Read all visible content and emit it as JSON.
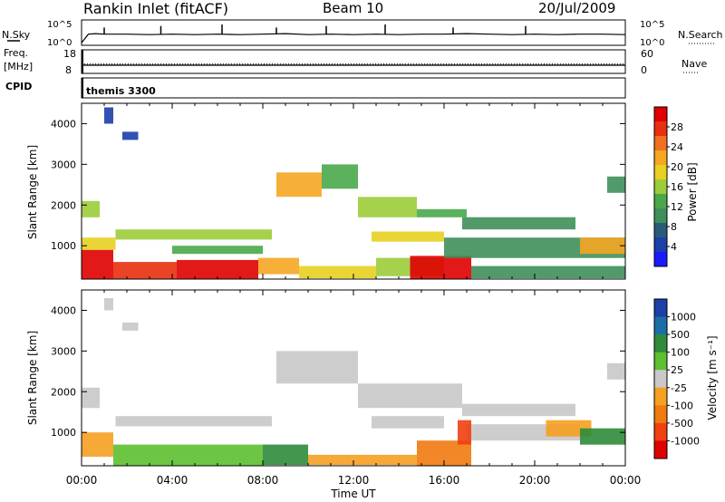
{
  "header": {
    "station": "Rankin Inlet (fitACF)",
    "beam": "Beam 10",
    "date": "20/Jul/2009"
  },
  "left_labels": {
    "nsky": "N.Sky",
    "freq": "Freq.",
    "mhz": "[MHz]",
    "cpid": "CPID"
  },
  "right_labels": {
    "nsearch": "N.Search",
    "nave": "Nave"
  },
  "cpid_text": "themis 3300",
  "colors": {
    "power": [
      "#1a1aff",
      "#1c3fa8",
      "#2a5a7a",
      "#3f8f5a",
      "#4aa84a",
      "#9ccc3a",
      "#e8d020",
      "#f5a623",
      "#f07020",
      "#e83010",
      "#e00000"
    ],
    "velocity": [
      "#e00000",
      "#f04010",
      "#f07a10",
      "#f5a020",
      "#c8c8c8",
      "#5cc030",
      "#2e8b3a",
      "#1c6ea8",
      "#1c3fa8"
    ]
  },
  "chart_data": [
    {
      "type": "line",
      "id": "nsky-nsearch",
      "ylabels_left": [
        "10^5",
        "10^0"
      ],
      "ylabels_right": [
        "10^5",
        "10^0"
      ],
      "x_hours": [
        0,
        0.3,
        0.6,
        1.0,
        2.0,
        3.0,
        4.0,
        5.0,
        6.0,
        7.0,
        8.0,
        9.0,
        10.0,
        11.0,
        12.0,
        13.0,
        14.0,
        15.0,
        16.0,
        17.0,
        18.0,
        19.0,
        20.0,
        21.0,
        22.0,
        23.0,
        24.0
      ],
      "nsky_log": [
        0.5,
        2.2,
        2.3,
        2.2,
        2.2,
        2.1,
        2.2,
        2.1,
        2.2,
        2.1,
        2.2,
        2.3,
        2.1,
        2.2,
        2.1,
        2.2,
        2.1,
        2.2,
        2.2,
        2.3,
        2.2,
        2.1,
        2.2,
        2.1,
        2.2,
        2.2,
        2.1
      ],
      "spikes_hours": [
        1.0,
        3.5,
        6.2,
        8.6,
        10.8,
        13.4,
        16.4,
        19.6
      ]
    },
    {
      "type": "line",
      "id": "freq-nave",
      "ylabels_left": [
        "18",
        "8"
      ],
      "ylabels_right": [
        "60",
        "0"
      ],
      "freq_mhz": 11.5,
      "nave": 24
    },
    {
      "type": "heatmap",
      "id": "power",
      "xlabels": [
        "00:00",
        "04:00",
        "08:00",
        "12:00",
        "16:00",
        "20:00",
        "00:00"
      ],
      "xlim": [
        0,
        24
      ],
      "ylabel": "Slant Range [km]",
      "ylim": [
        180,
        4500
      ],
      "yticks": [
        1000,
        2000,
        3000,
        4000
      ],
      "colorbar_label": "Power [dB]",
      "colorbar_ticks": [
        "4",
        "8",
        "12",
        "16",
        "20",
        "24",
        "28"
      ],
      "regions": [
        {
          "t0": 0.0,
          "t1": 1.4,
          "r0": 180,
          "r1": 900,
          "level": 10
        },
        {
          "t0": 1.4,
          "t1": 4.2,
          "r0": 180,
          "r1": 600,
          "level": 9
        },
        {
          "t0": 4.2,
          "t1": 7.8,
          "r0": 180,
          "r1": 650,
          "level": 10
        },
        {
          "t0": 7.8,
          "t1": 9.6,
          "r0": 300,
          "r1": 700,
          "level": 7
        },
        {
          "t0": 9.6,
          "t1": 13.0,
          "r0": 200,
          "r1": 500,
          "level": 6
        },
        {
          "t0": 13.0,
          "t1": 16.0,
          "r0": 250,
          "r1": 700,
          "level": 5
        },
        {
          "t0": 14.5,
          "t1": 17.2,
          "r0": 180,
          "r1": 750,
          "level": 10
        },
        {
          "t0": 17.2,
          "t1": 24.0,
          "r0": 200,
          "r1": 500,
          "level": 3
        },
        {
          "t0": 0.0,
          "t1": 1.5,
          "r0": 900,
          "r1": 1200,
          "level": 6
        },
        {
          "t0": 1.5,
          "t1": 8.4,
          "r0": 1150,
          "r1": 1400,
          "level": 5
        },
        {
          "t0": 4.0,
          "t1": 8.0,
          "r0": 800,
          "r1": 1000,
          "level": 4
        },
        {
          "t0": 0.0,
          "t1": 0.8,
          "r0": 1700,
          "r1": 2100,
          "level": 5
        },
        {
          "t0": 8.6,
          "t1": 10.6,
          "r0": 2200,
          "r1": 2800,
          "level": 7
        },
        {
          "t0": 10.6,
          "t1": 12.2,
          "r0": 2400,
          "r1": 3000,
          "level": 4
        },
        {
          "t0": 12.2,
          "t1": 14.8,
          "r0": 1700,
          "r1": 2200,
          "level": 5
        },
        {
          "t0": 14.8,
          "t1": 17.0,
          "r0": 1700,
          "r1": 1900,
          "level": 4
        },
        {
          "t0": 16.8,
          "t1": 21.8,
          "r0": 1400,
          "r1": 1700,
          "level": 3
        },
        {
          "t0": 12.8,
          "t1": 16.0,
          "r0": 1100,
          "r1": 1350,
          "level": 6
        },
        {
          "t0": 16.0,
          "t1": 24.0,
          "r0": 700,
          "r1": 1200,
          "level": 3
        },
        {
          "t0": 22.0,
          "t1": 24.0,
          "r0": 800,
          "r1": 1200,
          "level": 7
        },
        {
          "t0": 23.2,
          "t1": 24.0,
          "r0": 2300,
          "r1": 2700,
          "level": 3
        },
        {
          "t0": 1.0,
          "t1": 1.4,
          "r0": 4000,
          "r1": 4400,
          "level": 1
        },
        {
          "t0": 1.8,
          "t1": 2.5,
          "r0": 3600,
          "r1": 3800,
          "level": 1
        }
      ]
    },
    {
      "type": "heatmap",
      "id": "velocity",
      "xlabels": [
        "00:00",
        "04:00",
        "08:00",
        "12:00",
        "16:00",
        "20:00",
        "00:00"
      ],
      "xlim": [
        0,
        24
      ],
      "xlabel": "Time UT",
      "ylabel": "Slant Range [km]",
      "ylim": [
        180,
        4500
      ],
      "yticks": [
        1000,
        2000,
        3000,
        4000
      ],
      "colorbar_label": "Velocity [m s⁻¹]",
      "colorbar_ticks": [
        "-1000",
        "-500",
        "-100",
        "-25",
        "25",
        "100",
        "500",
        "1000"
      ],
      "regions": [
        {
          "t0": 0.0,
          "t1": 1.4,
          "r0": 400,
          "r1": 1000,
          "level": 3
        },
        {
          "t0": 0.0,
          "t1": 0.8,
          "r0": 1600,
          "r1": 2100,
          "level": 4
        },
        {
          "t0": 1.4,
          "t1": 8.0,
          "r0": 180,
          "r1": 700,
          "level": 5
        },
        {
          "t0": 1.5,
          "t1": 8.4,
          "r0": 1150,
          "r1": 1400,
          "level": 4
        },
        {
          "t0": 8.0,
          "t1": 10.0,
          "r0": 200,
          "r1": 700,
          "level": 6
        },
        {
          "t0": 10.0,
          "t1": 14.8,
          "r0": 200,
          "r1": 450,
          "level": 3
        },
        {
          "t0": 14.8,
          "t1": 17.2,
          "r0": 180,
          "r1": 800,
          "level": 2
        },
        {
          "t0": 8.6,
          "t1": 12.2,
          "r0": 2200,
          "r1": 3000,
          "level": 4
        },
        {
          "t0": 12.2,
          "t1": 16.8,
          "r0": 1600,
          "r1": 2200,
          "level": 4
        },
        {
          "t0": 12.8,
          "t1": 16.0,
          "r0": 1100,
          "r1": 1400,
          "level": 4
        },
        {
          "t0": 16.8,
          "t1": 21.8,
          "r0": 1400,
          "r1": 1700,
          "level": 4
        },
        {
          "t0": 17.0,
          "t1": 22.0,
          "r0": 800,
          "r1": 1200,
          "level": 4
        },
        {
          "t0": 20.5,
          "t1": 22.5,
          "r0": 900,
          "r1": 1300,
          "level": 3
        },
        {
          "t0": 22.0,
          "t1": 24.0,
          "r0": 700,
          "r1": 1100,
          "level": 6
        },
        {
          "t0": 23.2,
          "t1": 24.0,
          "r0": 2300,
          "r1": 2700,
          "level": 4
        },
        {
          "t0": 1.0,
          "t1": 1.4,
          "r0": 4000,
          "r1": 4300,
          "level": 4
        },
        {
          "t0": 1.8,
          "t1": 2.5,
          "r0": 3500,
          "r1": 3700,
          "level": 4
        },
        {
          "t0": 16.6,
          "t1": 17.2,
          "r0": 700,
          "r1": 1300,
          "level": 1
        }
      ]
    }
  ]
}
